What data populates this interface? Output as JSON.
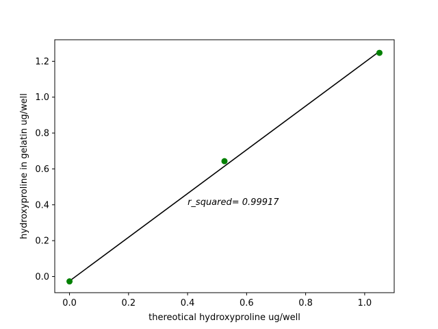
{
  "chart_data": {
    "type": "scatter",
    "title": "",
    "xlabel": "thereotical hydroxyproline ug/well",
    "ylabel": "hydroxyproline in gelatin ug/well",
    "xlim": [
      -0.05,
      1.1
    ],
    "ylim": [
      -0.09,
      1.32
    ],
    "xticks": [
      0.0,
      0.2,
      0.4,
      0.6,
      0.8,
      1.0
    ],
    "xtick_labels": [
      "0.0",
      "0.2",
      "0.4",
      "0.6",
      "0.8",
      "1.0"
    ],
    "yticks": [
      0.0,
      0.2,
      0.4,
      0.6,
      0.8,
      1.0,
      1.2
    ],
    "ytick_labels": [
      "0.0",
      "0.2",
      "0.4",
      "0.6",
      "0.8",
      "1.0",
      "1.2"
    ],
    "grid": false,
    "series": [
      {
        "kind": "scatter",
        "color": "#008000",
        "x": [
          0.0,
          0.525,
          1.05
        ],
        "y": [
          -0.027,
          0.643,
          1.247
        ]
      },
      {
        "kind": "line",
        "color": "#000000",
        "x": [
          0.0,
          1.05
        ],
        "y": [
          -0.025,
          1.255
        ]
      }
    ],
    "annotations": [
      {
        "text": "r_squared= 0.99917",
        "x": 0.4,
        "y": 0.4
      }
    ]
  }
}
